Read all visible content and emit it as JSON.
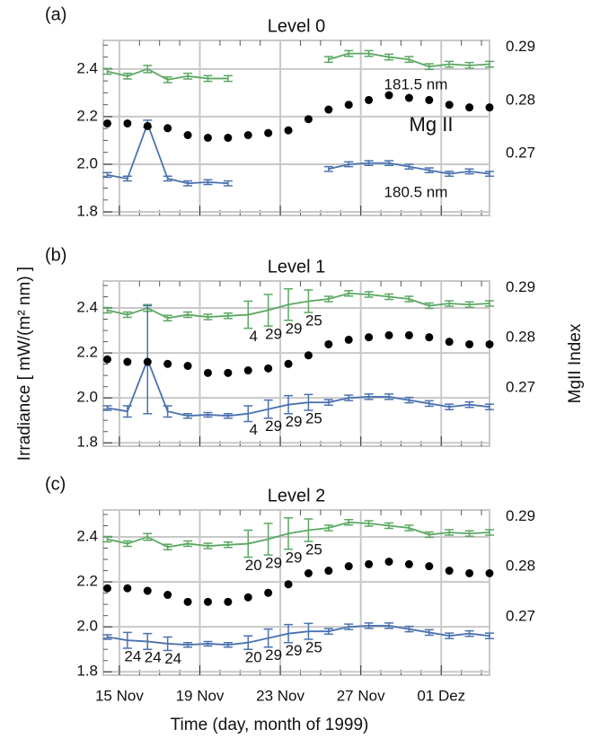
{
  "chart_data": [
    {
      "type": "line",
      "panel_label": "(a)",
      "title": "Level 0",
      "annotations": [
        "181.5 nm",
        "Mg II",
        "180.5 nm"
      ],
      "x": [
        14.4,
        15.4,
        16.4,
        17.4,
        18.4,
        19.4,
        20.4,
        21.4,
        22.4,
        23.4,
        24.4,
        25.4,
        26.4,
        27.4,
        28.4,
        29.4,
        30.4,
        31.4,
        32.4,
        33.4
      ],
      "xlim": [
        14.2,
        33.4
      ],
      "xticks": [
        15,
        19,
        23,
        27,
        31
      ],
      "ylim": [
        1.785,
        2.52
      ],
      "yticks": [
        1.8,
        {
          "value": 2,
          "label": "2.0"
        },
        2.2,
        2.4
      ],
      "y2lim": [
        0.2584,
        0.2913
      ],
      "y2ticks": [
        0.27,
        0.28,
        0.29
      ],
      "grid": true,
      "series": [
        {
          "color": "#5aa862",
          "style": "line",
          "values": [
            2.39,
            2.37,
            2.4,
            2.355,
            2.37,
            2.36,
            2.36,
            null,
            null,
            null,
            null,
            2.44,
            2.465,
            2.465,
            2.45,
            2.44,
            2.41,
            2.42,
            2.415,
            2.42
          ],
          "errors": [
            0.012,
            0.012,
            0.015,
            0.012,
            0.012,
            0.012,
            0.012,
            null,
            null,
            null,
            null,
            0.012,
            0.012,
            0.012,
            0.012,
            0.012,
            0.012,
            0.012,
            0.012,
            0.012
          ]
        },
        {
          "color": "#4a72b0",
          "style": "line",
          "values": [
            1.955,
            1.94,
            2.17,
            1.94,
            1.92,
            1.925,
            1.92,
            null,
            null,
            null,
            null,
            1.98,
            2.0,
            2.005,
            2.005,
            1.99,
            1.975,
            1.96,
            1.97,
            1.96
          ],
          "errors": [
            0.01,
            0.01,
            0.015,
            0.01,
            0.01,
            0.01,
            0.01,
            null,
            null,
            null,
            null,
            0.01,
            0.01,
            0.01,
            0.01,
            0.01,
            0.01,
            0.01,
            0.01,
            0.01
          ]
        },
        {
          "color": "#000000",
          "style": "dots",
          "axis": "y2",
          "values": [
            0.2757,
            0.2757,
            0.2752,
            0.2748,
            0.2735,
            0.273,
            0.273,
            0.2735,
            0.2739,
            0.2744,
            0.2765,
            0.2783,
            0.2792,
            0.2801,
            0.281,
            0.2805,
            0.2801,
            0.2792,
            0.2787,
            0.2787
          ]
        }
      ]
    },
    {
      "type": "line",
      "panel_label": "(b)",
      "title": "Level 1",
      "ylabel": "Irradiance [ mW/(m² nm) ]",
      "y2label": "MgII Index",
      "x": [
        14.4,
        15.4,
        16.4,
        17.4,
        18.4,
        19.4,
        20.4,
        21.4,
        22.4,
        23.4,
        24.4,
        25.4,
        26.4,
        27.4,
        28.4,
        29.4,
        30.4,
        31.4,
        32.4,
        33.4
      ],
      "xlim": [
        14.2,
        33.4
      ],
      "xticks": [
        15,
        19,
        23,
        27,
        31
      ],
      "ylim": [
        1.785,
        2.52
      ],
      "yticks": [
        1.8,
        {
          "value": 2,
          "label": "2.0"
        },
        2.2,
        2.4
      ],
      "y2lim": [
        0.2584,
        0.2913
      ],
      "y2ticks": [
        0.27,
        0.28,
        0.29
      ],
      "grid": true,
      "series": [
        {
          "color": "#5aa862",
          "style": "line",
          "values": [
            2.39,
            2.37,
            2.4,
            2.355,
            2.37,
            2.36,
            2.365,
            2.37,
            2.39,
            2.415,
            2.43,
            2.44,
            2.465,
            2.46,
            2.45,
            2.44,
            2.41,
            2.42,
            2.415,
            2.42
          ],
          "errors": [
            0.012,
            0.012,
            0.015,
            0.012,
            0.012,
            0.012,
            0.012,
            0.06,
            0.07,
            0.07,
            0.05,
            0.012,
            0.012,
            0.012,
            0.012,
            0.012,
            0.012,
            0.012,
            0.012,
            0.012
          ],
          "point_labels": [
            null,
            null,
            null,
            null,
            null,
            null,
            null,
            "4",
            "29",
            "29",
            "25",
            null,
            null,
            null,
            null,
            null,
            null,
            null,
            null,
            null
          ]
        },
        {
          "color": "#4a72b0",
          "style": "line",
          "values": [
            1.955,
            1.94,
            2.17,
            1.94,
            1.92,
            1.925,
            1.92,
            1.93,
            1.95,
            1.97,
            1.98,
            1.98,
            2.0,
            2.005,
            2.005,
            1.99,
            1.975,
            1.96,
            1.97,
            1.96
          ],
          "errors": [
            0.01,
            0.025,
            0.24,
            0.025,
            0.01,
            0.01,
            0.01,
            0.035,
            0.04,
            0.04,
            0.035,
            0.012,
            0.012,
            0.012,
            0.012,
            0.012,
            0.012,
            0.012,
            0.012,
            0.012
          ],
          "point_labels": [
            null,
            null,
            null,
            null,
            null,
            null,
            null,
            "4",
            "29",
            "29",
            "25",
            null,
            null,
            null,
            null,
            null,
            null,
            null,
            null,
            null
          ]
        },
        {
          "color": "#000000",
          "style": "dots",
          "axis": "y2",
          "values": [
            0.2757,
            0.2752,
            0.2752,
            0.2748,
            0.2744,
            0.273,
            0.273,
            0.2735,
            0.2739,
            0.2748,
            0.2765,
            0.2787,
            0.2796,
            0.2801,
            0.2805,
            0.2805,
            0.2801,
            0.2792,
            0.2787,
            0.2787
          ]
        }
      ]
    },
    {
      "type": "line",
      "panel_label": "(c)",
      "title": "Level 2",
      "xlabel": "Time (day, month of 1999)",
      "x": [
        14.4,
        15.4,
        16.4,
        17.4,
        18.4,
        19.4,
        20.4,
        21.4,
        22.4,
        23.4,
        24.4,
        25.4,
        26.4,
        27.4,
        28.4,
        29.4,
        30.4,
        31.4,
        32.4,
        33.4
      ],
      "xlim": [
        14.2,
        33.4
      ],
      "xticks": [
        {
          "value": 15,
          "label": "15 Nov"
        },
        {
          "value": 19,
          "label": "19 Nov"
        },
        {
          "value": 23,
          "label": "23 Nov"
        },
        {
          "value": 27,
          "label": "27 Nov"
        },
        {
          "value": 31,
          "label": "01 Dez"
        }
      ],
      "ylim": [
        1.785,
        2.52
      ],
      "yticks": [
        1.8,
        {
          "value": 2,
          "label": "2.0"
        },
        2.2,
        2.4
      ],
      "y2lim": [
        0.2584,
        0.2913
      ],
      "y2ticks": [
        0.27,
        0.28,
        0.29
      ],
      "grid": true,
      "series": [
        {
          "color": "#5aa862",
          "style": "line",
          "values": [
            2.39,
            2.37,
            2.4,
            2.355,
            2.37,
            2.36,
            2.365,
            2.37,
            2.39,
            2.415,
            2.43,
            2.44,
            2.465,
            2.46,
            2.45,
            2.44,
            2.41,
            2.42,
            2.415,
            2.42
          ],
          "errors": [
            0.012,
            0.012,
            0.015,
            0.012,
            0.012,
            0.012,
            0.012,
            0.06,
            0.07,
            0.07,
            0.05,
            0.012,
            0.012,
            0.012,
            0.012,
            0.012,
            0.012,
            0.012,
            0.012,
            0.012
          ],
          "point_labels": [
            null,
            null,
            null,
            null,
            null,
            null,
            null,
            "20",
            "29",
            "29",
            "25",
            null,
            null,
            null,
            null,
            null,
            null,
            null,
            null,
            null
          ]
        },
        {
          "color": "#4a72b0",
          "style": "line",
          "values": [
            1.955,
            1.94,
            1.935,
            1.925,
            1.92,
            1.925,
            1.92,
            1.93,
            1.95,
            1.97,
            1.98,
            1.98,
            2.0,
            2.005,
            2.005,
            1.99,
            1.975,
            1.96,
            1.97,
            1.96
          ],
          "errors": [
            0.01,
            0.035,
            0.035,
            0.03,
            0.01,
            0.01,
            0.01,
            0.03,
            0.04,
            0.04,
            0.035,
            0.012,
            0.012,
            0.012,
            0.012,
            0.012,
            0.012,
            0.012,
            0.012,
            0.012
          ],
          "point_labels": [
            null,
            "24",
            "24",
            "24",
            null,
            null,
            null,
            "20",
            "29",
            "29",
            "25",
            null,
            null,
            null,
            null,
            null,
            null,
            null,
            null,
            null
          ]
        },
        {
          "color": "#000000",
          "style": "dots",
          "axis": "y2",
          "values": [
            0.2757,
            0.2757,
            0.2752,
            0.2744,
            0.273,
            0.273,
            0.273,
            0.2739,
            0.2748,
            0.2765,
            0.2787,
            0.2792,
            0.2801,
            0.2805,
            0.281,
            0.2805,
            0.2801,
            0.2792,
            0.2787,
            0.2787
          ]
        }
      ]
    }
  ]
}
